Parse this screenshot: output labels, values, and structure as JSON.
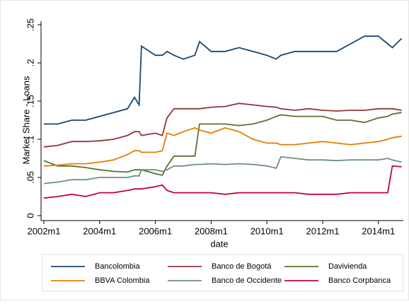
{
  "chart_data": {
    "type": "line",
    "y_label": "Market Share - Loans",
    "x_label": "date",
    "x": [
      "2002m1",
      "2002m7",
      "2003m1",
      "2003m7",
      "2004m1",
      "2004m7",
      "2005m1",
      "2005m4",
      "2005m6",
      "2005m7",
      "2006m1",
      "2006m4",
      "2006m6",
      "2006m9",
      "2007m1",
      "2007m6",
      "2007m8",
      "2008m1",
      "2008m7",
      "2009m1",
      "2009m7",
      "2010m1",
      "2010m5",
      "2010m7",
      "2011m1",
      "2011m7",
      "2012m1",
      "2012m7",
      "2013m1",
      "2013m7",
      "2014m1",
      "2014m5",
      "2014m7",
      "2014m11"
    ],
    "xticks": [
      "2002m1",
      "2004m1",
      "2006m1",
      "2008m1",
      "2010m1",
      "2012m1",
      "2014m1"
    ],
    "ylim": [
      0,
      0.25
    ],
    "yticks": [
      0,
      {
        "value": 0.05,
        "label": ".05"
      },
      {
        "value": 0.1,
        "label": ".1"
      },
      {
        "value": 0.15,
        "label": ".15"
      },
      {
        "value": 0.2,
        "label": ".2"
      },
      {
        "value": 0.25,
        "label": ".25"
      }
    ],
    "series": [
      {
        "name": "Bancolombia",
        "color": "#1a476f",
        "values": [
          0.12,
          0.12,
          0.125,
          0.125,
          0.13,
          0.135,
          0.14,
          0.155,
          0.145,
          0.222,
          0.21,
          0.21,
          0.215,
          0.21,
          0.205,
          0.21,
          0.228,
          0.215,
          0.215,
          0.22,
          0.215,
          0.21,
          0.205,
          0.21,
          0.215,
          0.215,
          0.215,
          0.215,
          0.225,
          0.235,
          0.235,
          0.225,
          0.22,
          0.232
        ]
      },
      {
        "name": "Banco de Bogotá",
        "color": "#90353b",
        "values": [
          0.09,
          0.092,
          0.097,
          0.097,
          0.098,
          0.1,
          0.105,
          0.11,
          0.11,
          0.105,
          0.108,
          0.105,
          0.128,
          0.14,
          0.14,
          0.14,
          0.14,
          0.142,
          0.143,
          0.147,
          0.145,
          0.143,
          0.142,
          0.14,
          0.138,
          0.14,
          0.138,
          0.137,
          0.138,
          0.138,
          0.14,
          0.14,
          0.14,
          0.138
        ]
      },
      {
        "name": "Davivienda",
        "color": "#55752f",
        "values": [
          0.072,
          0.065,
          0.065,
          0.063,
          0.06,
          0.058,
          0.057,
          0.06,
          0.06,
          0.06,
          0.055,
          0.053,
          0.065,
          0.078,
          0.078,
          0.078,
          0.12,
          0.12,
          0.12,
          0.118,
          0.12,
          0.125,
          0.13,
          0.132,
          0.13,
          0.13,
          0.13,
          0.125,
          0.125,
          0.122,
          0.128,
          0.13,
          0.133,
          0.135
        ]
      },
      {
        "name": "BBVA Colombia",
        "color": "#e37e00",
        "values": [
          0.065,
          0.066,
          0.068,
          0.068,
          0.07,
          0.073,
          0.08,
          0.085,
          0.085,
          0.083,
          0.083,
          0.085,
          0.108,
          0.105,
          0.11,
          0.115,
          0.112,
          0.108,
          0.115,
          0.11,
          0.1,
          0.095,
          0.095,
          0.093,
          0.093,
          0.095,
          0.097,
          0.095,
          0.093,
          0.095,
          0.097,
          0.1,
          0.102,
          0.104
        ]
      },
      {
        "name": "Banco de Occidente",
        "color": "#6e8e84",
        "values": [
          0.042,
          0.044,
          0.047,
          0.047,
          0.05,
          0.05,
          0.05,
          0.052,
          0.052,
          0.06,
          0.06,
          0.058,
          0.06,
          0.065,
          0.065,
          0.067,
          0.067,
          0.068,
          0.067,
          0.068,
          0.067,
          0.065,
          0.062,
          0.077,
          0.075,
          0.073,
          0.073,
          0.072,
          0.073,
          0.073,
          0.073,
          0.075,
          0.073,
          0.07
        ]
      },
      {
        "name": "Banco Corpbanca",
        "color": "#c10534",
        "values": [
          0.023,
          0.025,
          0.028,
          0.025,
          0.03,
          0.03,
          0.033,
          0.035,
          0.035,
          0.035,
          0.038,
          0.04,
          0.033,
          0.03,
          0.03,
          0.03,
          0.03,
          0.03,
          0.028,
          0.03,
          0.03,
          0.03,
          0.03,
          0.03,
          0.03,
          0.028,
          0.028,
          0.028,
          0.03,
          0.03,
          0.03,
          0.03,
          0.065,
          0.064
        ]
      }
    ]
  }
}
